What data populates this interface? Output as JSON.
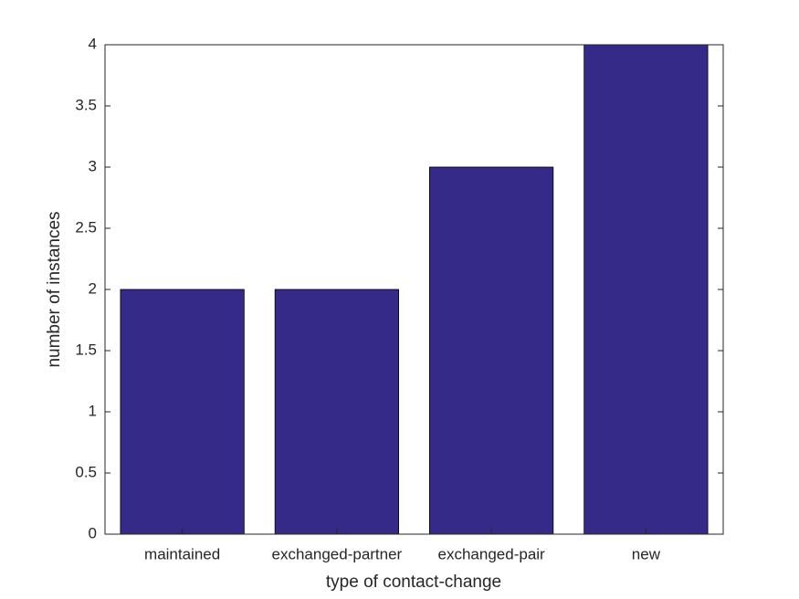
{
  "chart_data": {
    "type": "bar",
    "xlabel": "type of contact-change",
    "ylabel": "number of instances",
    "categories": [
      "maintained",
      "exchanged-partner",
      "exchanged-pair",
      "new"
    ],
    "values": [
      2,
      2,
      3,
      4
    ],
    "color": "#352a87",
    "ylim": [
      0,
      4
    ],
    "yticks": [
      0,
      0.5,
      1,
      1.5,
      2,
      2.5,
      3,
      3.5,
      4
    ],
    "grid": false
  }
}
